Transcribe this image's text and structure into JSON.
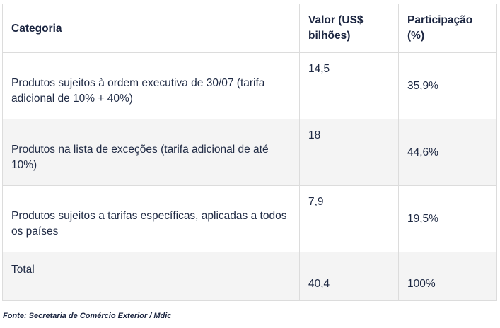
{
  "table": {
    "headers": {
      "categoria": "Categoria",
      "valor": "Valor (US$ bilhões)",
      "participacao": "Participação (%)"
    },
    "rows": [
      {
        "categoria": "Produtos sujeitos à ordem executiva de 30/07 (tarifa adicional de 10% + 40%)",
        "valor": "14,5",
        "participacao": "35,9%"
      },
      {
        "categoria": "Produtos na lista de exceções (tarifa adicional de até 10%)",
        "valor": "18",
        "participacao": "44,6%"
      },
      {
        "categoria": "Produtos sujeitos a tarifas específicas, aplicadas a todos os países",
        "valor": "7,9",
        "participacao": "19,5%"
      },
      {
        "categoria": "Total",
        "valor": "40,4",
        "participacao": "100%"
      }
    ]
  },
  "source": "Fonte: Secretaria de Comércio Exterior / Mdic",
  "colors": {
    "text": "#1f2a44",
    "row_shade": "#f4f4f4",
    "border": "#dcdcdc"
  }
}
